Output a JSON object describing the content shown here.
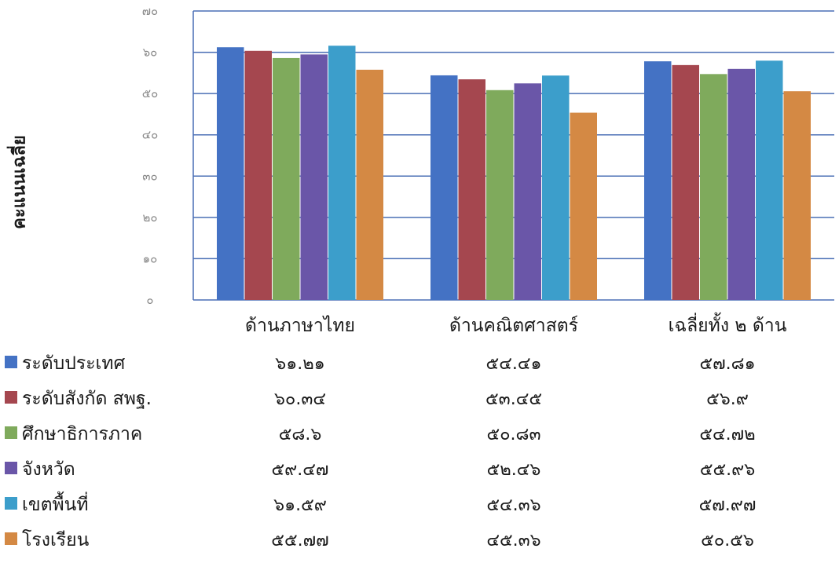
{
  "chart_data": {
    "type": "bar",
    "title": "",
    "xlabel": "",
    "ylabel": "คะแนนเฉลี่ย",
    "ylim": [
      0,
      70
    ],
    "yticks": [
      0,
      10,
      20,
      30,
      40,
      50,
      60,
      70
    ],
    "ytick_labels": [
      "๐",
      "๑๐",
      "๒๐",
      "๓๐",
      "๔๐",
      "๕๐",
      "๖๐",
      "๗๐"
    ],
    "categories": [
      "ด้านภาษาไทย",
      "ด้านคณิตศาสตร์",
      "เฉลี่ยทั้ง ๒ ด้าน"
    ],
    "grid": true,
    "legend_placement": "bottom data table",
    "series": [
      {
        "name": "ระดับประเทศ",
        "color": "#4472c4",
        "values": [
          61.21,
          54.41,
          57.81
        ],
        "labels": [
          "๖๑.๒๑",
          "๕๔.๔๑",
          "๕๗.๘๑"
        ]
      },
      {
        "name": "ระดับสังกัด สพฐ.",
        "color": "#a5474f",
        "values": [
          60.34,
          53.45,
          56.9
        ],
        "labels": [
          "๖๐.๓๔",
          "๕๓.๔๕",
          "๕๖.๙"
        ]
      },
      {
        "name": "ศึกษาธิการภาค",
        "color": "#7faa5c",
        "values": [
          58.6,
          50.83,
          54.72
        ],
        "labels": [
          "๕๘.๖",
          "๕๐.๘๓",
          "๕๔.๗๒"
        ]
      },
      {
        "name": "จังหวัด",
        "color": "#6a56a8",
        "values": [
          59.47,
          52.46,
          55.96
        ],
        "labels": [
          "๕๙.๔๗",
          "๕๒.๔๖",
          "๕๕.๙๖"
        ]
      },
      {
        "name": "เขตพื้นที่",
        "color": "#3c9ecb",
        "values": [
          61.59,
          54.36,
          57.97
        ],
        "labels": [
          "๖๑.๕๙",
          "๕๔.๓๖",
          "๕๗.๙๗"
        ]
      },
      {
        "name": "โรงเรียน",
        "color": "#d48944",
        "values": [
          55.77,
          45.36,
          50.56
        ],
        "labels": [
          "๕๕.๗๗",
          "๔๕.๓๖",
          "๕๐.๕๖"
        ]
      }
    ]
  }
}
